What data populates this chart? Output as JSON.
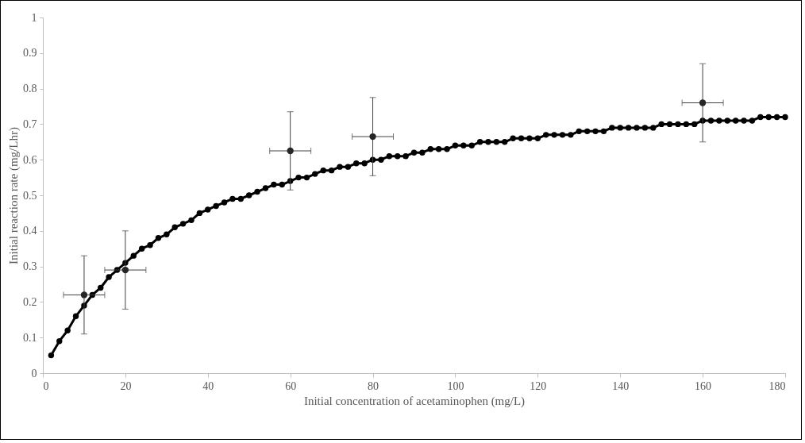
{
  "chart_data": {
    "type": "scatter",
    "xlabel": "Initial  concentration  of  acetaminophen  (mg/L)",
    "ylabel": "Initial  reaction  rate  (mg/Lhr)",
    "xlim": [
      0,
      180
    ],
    "ylim": [
      0,
      1
    ],
    "xticks": [
      0,
      20,
      40,
      60,
      80,
      100,
      120,
      140,
      160,
      180
    ],
    "yticks": [
      {
        "value": 0,
        "label": "0"
      },
      0.1,
      0.2,
      0.3,
      0.4,
      0.5,
      0.6,
      0.7,
      0.8,
      0.9,
      {
        "value": 1,
        "label": "1"
      }
    ],
    "grid": false,
    "marker": "circle",
    "series": [
      {
        "type": "line",
        "color": "#000000",
        "x": [
          2,
          4,
          6,
          8,
          10,
          12,
          14,
          16,
          18,
          20,
          22,
          24,
          26,
          28,
          30,
          32,
          34,
          36,
          38,
          40,
          42,
          44,
          46,
          48,
          50,
          52,
          54,
          56,
          58,
          60,
          62,
          64,
          66,
          68,
          70,
          72,
          74,
          76,
          78,
          80,
          82,
          84,
          86,
          88,
          90,
          92,
          94,
          96,
          98,
          100,
          102,
          104,
          106,
          108,
          110,
          112,
          114,
          116,
          118,
          120,
          122,
          124,
          126,
          128,
          130,
          132,
          134,
          136,
          138,
          140,
          142,
          144,
          146,
          148,
          150,
          152,
          154,
          156,
          158,
          160,
          162,
          164,
          166,
          168,
          170,
          172,
          174,
          176,
          178,
          180
        ],
        "values": [
          0.05,
          0.09,
          0.12,
          0.16,
          0.19,
          0.22,
          0.24,
          0.27,
          0.29,
          0.31,
          0.33,
          0.35,
          0.36,
          0.38,
          0.39,
          0.41,
          0.42,
          0.43,
          0.45,
          0.46,
          0.47,
          0.48,
          0.49,
          0.49,
          0.5,
          0.51,
          0.52,
          0.53,
          0.53,
          0.54,
          0.55,
          0.55,
          0.56,
          0.57,
          0.57,
          0.58,
          0.58,
          0.59,
          0.59,
          0.6,
          0.6,
          0.61,
          0.61,
          0.61,
          0.62,
          0.62,
          0.63,
          0.63,
          0.63,
          0.64,
          0.64,
          0.64,
          0.65,
          0.65,
          0.65,
          0.65,
          0.66,
          0.66,
          0.66,
          0.66,
          0.67,
          0.67,
          0.67,
          0.67,
          0.68,
          0.68,
          0.68,
          0.68,
          0.69,
          0.69,
          0.69,
          0.69,
          0.69,
          0.69,
          0.7,
          0.7,
          0.7,
          0.7,
          0.7,
          0.71,
          0.71,
          0.71,
          0.71,
          0.71,
          0.71,
          0.71,
          0.72,
          0.72,
          0.72,
          0.72
        ]
      },
      {
        "color": "#262626",
        "x": [
          10,
          20,
          60,
          80,
          160
        ],
        "values": [
          0.22,
          0.29,
          0.625,
          0.665,
          0.76
        ],
        "errors": [
          0.11,
          0.11,
          0.11,
          0.11,
          0.11
        ],
        "xerrors": [
          5,
          5,
          5,
          5,
          5
        ]
      }
    ]
  }
}
